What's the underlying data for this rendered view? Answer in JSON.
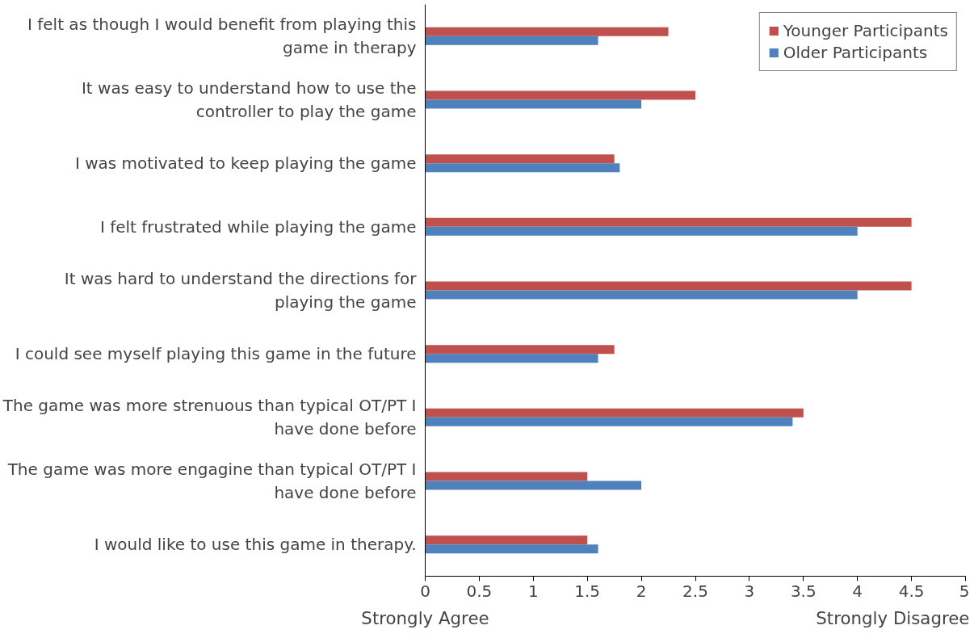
{
  "chart_data": {
    "type": "bar",
    "orientation": "horizontal",
    "categories": [
      "I felt as though I would benefit from playing this game in therapy",
      "It was easy to understand how to use the controller to play the game",
      "I was motivated to keep playing the game",
      "I felt frustrated while playing the game",
      "It was hard to understand the directions for playing the game",
      "I could see myself playing this game in the future",
      "The game was more strenuous than typical OT/PT I have done before",
      "The game was more engagine than typical OT/PT I have done before",
      "I would like to use this game in therapy."
    ],
    "series": [
      {
        "name": "Younger Participants",
        "color": "#c0504d",
        "values": [
          2.25,
          2.5,
          1.75,
          4.5,
          4.5,
          1.75,
          3.5,
          1.5,
          1.5
        ]
      },
      {
        "name": "Older Participants",
        "color": "#4f81bd",
        "values": [
          1.6,
          2.0,
          1.8,
          4.0,
          4.0,
          1.6,
          3.4,
          2.0,
          1.6
        ]
      }
    ],
    "xlim": [
      0,
      5
    ],
    "xticks": [
      0,
      0.5,
      1,
      1.5,
      2,
      2.5,
      3,
      3.5,
      4,
      4.5,
      5
    ],
    "annotations": [
      "Strongly Agree",
      "Strongly Disagree"
    ],
    "grid": false,
    "legend": "top right"
  }
}
